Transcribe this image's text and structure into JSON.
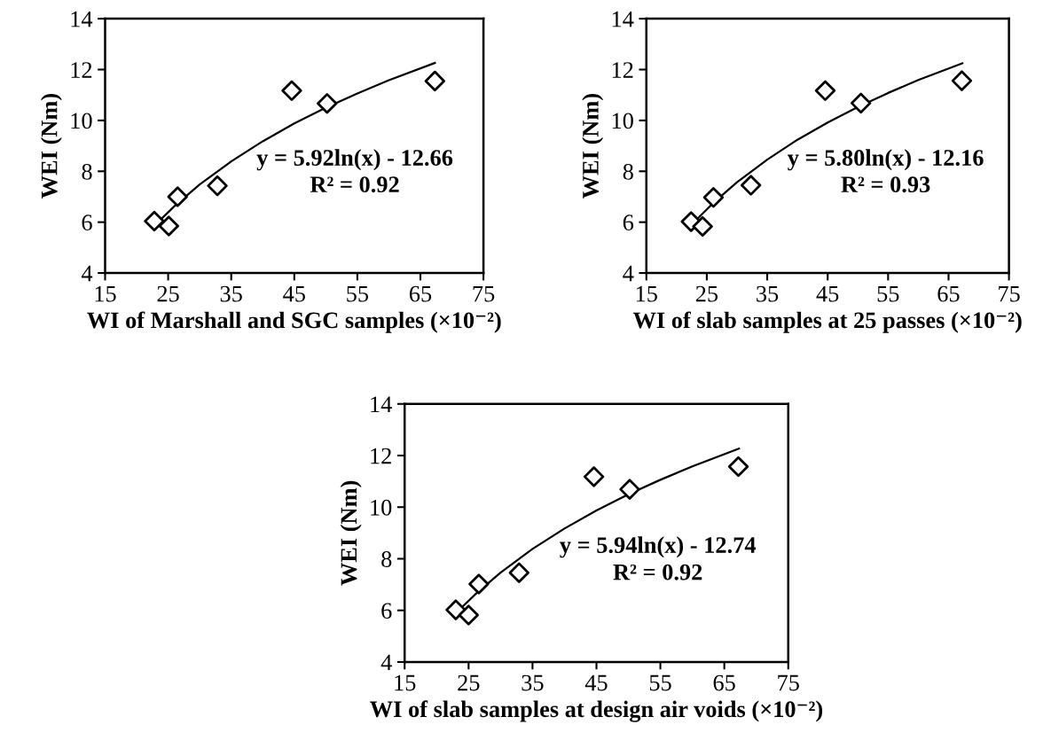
{
  "chart_data": [
    {
      "type": "scatter",
      "xlabel": "WI of Marshall and SGC samples (×10⁻²)",
      "ylabel": "WEI (Nm)",
      "annotations": [
        "y = 5.92ln(x) - 12.66",
        "R² = 0.92"
      ],
      "xlim": [
        15,
        75
      ],
      "xticks": [
        15,
        25,
        35,
        45,
        55,
        65,
        75
      ],
      "ylim": [
        4,
        14
      ],
      "yticks": [
        4,
        6,
        8,
        10,
        12,
        14
      ],
      "grid": false,
      "series": [
        {
          "marker": "diamond",
          "color": "#000000",
          "x": [
            22.8,
            25.1,
            26.5,
            32.8,
            44.6,
            50.2,
            67.3
          ],
          "values": [
            6.04,
            5.85,
            7.0,
            7.43,
            11.17,
            10.67,
            11.55
          ]
        },
        {
          "type": "line",
          "marker": "none",
          "line_style": "solid",
          "color": "#000000",
          "x": [
            23.5,
            26,
            30,
            35,
            40,
            45,
            50,
            55,
            60,
            67.3
          ],
          "values": [
            6.03,
            6.63,
            7.48,
            8.39,
            9.18,
            9.88,
            10.5,
            11.06,
            11.58,
            12.26
          ]
        }
      ]
    },
    {
      "type": "scatter",
      "xlabel": "WI of slab samples at 25 passes (×10⁻²)",
      "ylabel": "WEI (Nm)",
      "annotations": [
        "y = 5.80ln(x) - 12.16",
        "R² = 0.93"
      ],
      "xlim": [
        15,
        75
      ],
      "xticks": [
        15,
        25,
        35,
        45,
        55,
        65,
        75
      ],
      "ylim": [
        4,
        14
      ],
      "yticks": [
        4,
        6,
        8,
        10,
        12,
        14
      ],
      "grid": false,
      "series": [
        {
          "marker": "diamond",
          "color": "#000000",
          "x": [
            22.4,
            24.3,
            26.1,
            32.3,
            44.6,
            50.5,
            67.2
          ],
          "values": [
            6.02,
            5.83,
            6.97,
            7.45,
            11.17,
            10.68,
            11.56
          ]
        },
        {
          "type": "line",
          "marker": "none",
          "line_style": "solid",
          "color": "#000000",
          "x": [
            22.8,
            26,
            30,
            35,
            40,
            45,
            50,
            55,
            60,
            67.3
          ],
          "values": [
            5.98,
            6.74,
            7.57,
            8.46,
            9.24,
            9.92,
            10.53,
            11.08,
            11.59,
            12.25
          ]
        }
      ]
    },
    {
      "type": "scatter",
      "xlabel": "WI of slab samples at design air voids (×10⁻²)",
      "ylabel": "WEI (Nm)",
      "annotations": [
        "y = 5.94ln(x) - 12.74",
        "R² = 0.92"
      ],
      "xlim": [
        15,
        75
      ],
      "xticks": [
        15,
        25,
        35,
        45,
        55,
        65,
        75
      ],
      "ylim": [
        4,
        14
      ],
      "yticks": [
        4,
        6,
        8,
        10,
        12,
        14
      ],
      "grid": false,
      "series": [
        {
          "marker": "diamond",
          "color": "#000000",
          "x": [
            23.0,
            25.0,
            26.6,
            32.9,
            44.6,
            50.2,
            67.2
          ],
          "values": [
            6.02,
            5.82,
            7.02,
            7.46,
            11.18,
            10.69,
            11.57
          ]
        },
        {
          "type": "line",
          "marker": "none",
          "line_style": "solid",
          "color": "#000000",
          "x": [
            23.5,
            26,
            30,
            35,
            40,
            45,
            50,
            55,
            60,
            67.3
          ],
          "values": [
            6.01,
            6.61,
            7.46,
            8.38,
            9.17,
            9.87,
            10.5,
            11.06,
            11.58,
            12.27
          ]
        }
      ]
    }
  ]
}
